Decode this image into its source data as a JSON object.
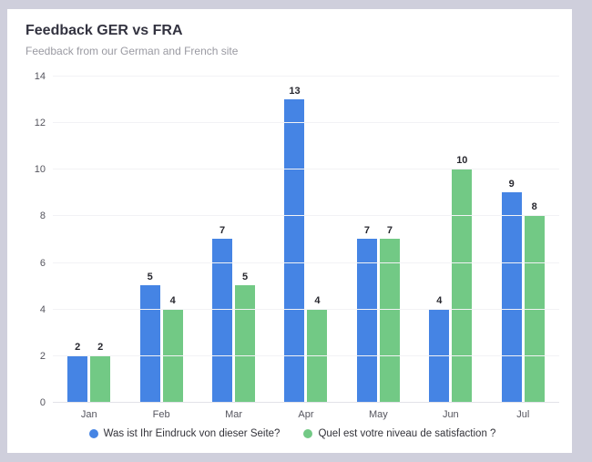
{
  "card": {
    "title": "Feedback GER vs FRA",
    "subtitle": "Feedback from our German and French site"
  },
  "chart_data": {
    "type": "bar",
    "title": "Feedback GER vs FRA",
    "subtitle": "Feedback from our German and French site",
    "categories": [
      "Jan",
      "Feb",
      "Mar",
      "Apr",
      "May",
      "Jun",
      "Jul"
    ],
    "series": [
      {
        "name": "Was ist Ihr Eindruck von dieser Seite?",
        "color": "#4584e4",
        "values": [
          2,
          5,
          7,
          13,
          7,
          4,
          9
        ]
      },
      {
        "name": "Quel est votre niveau de satisfaction ?",
        "color": "#72c985",
        "values": [
          2,
          4,
          5,
          4,
          7,
          10,
          8
        ]
      }
    ],
    "ylim": [
      0,
      14
    ],
    "yticks": [
      0,
      2,
      4,
      6,
      8,
      10,
      12,
      14
    ],
    "grid": true,
    "legend_position": "bottom",
    "data_labels": true
  },
  "colors": {
    "background": "#cfcfdc",
    "card": "#ffffff",
    "series_blue": "#4584e4",
    "series_green": "#72c985",
    "gridline": "#f2f2f5",
    "axis_line": "#e2e2e8"
  }
}
